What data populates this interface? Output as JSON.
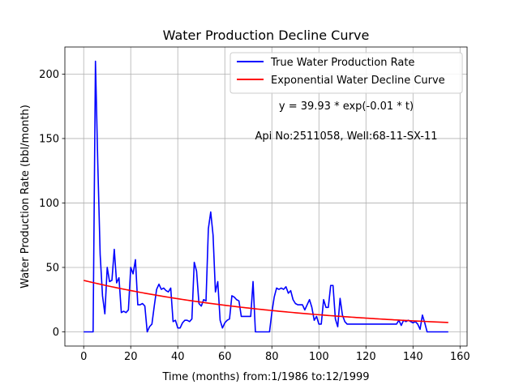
{
  "chart_data": {
    "type": "line",
    "title": "Water Production Decline Curve",
    "xlabel": "Time (months) from:1/1986 to:12/1999",
    "ylabel": "Water Production Rate (bbl/month)",
    "xlim": [
      -8,
      163
    ],
    "ylim": [
      -11,
      221
    ],
    "xticks": [
      0,
      20,
      40,
      60,
      80,
      100,
      120,
      140,
      160
    ],
    "yticks": [
      0,
      50,
      100,
      150,
      200
    ],
    "grid": true,
    "legend_position": "top-right",
    "annotations": [
      "y = 39.93 * exp(-0.01 * t)",
      "Api No:2511058, Well:68-11-SX-11"
    ],
    "series": [
      {
        "name": "True Water Production Rate",
        "color": "#0000ff",
        "points": [
          [
            0,
            0
          ],
          [
            1,
            0
          ],
          [
            2,
            0
          ],
          [
            3,
            0
          ],
          [
            4,
            0
          ],
          [
            5,
            210
          ],
          [
            6,
            130
          ],
          [
            7,
            60
          ],
          [
            8,
            28
          ],
          [
            9,
            14
          ],
          [
            10,
            50
          ],
          [
            11,
            39
          ],
          [
            12,
            40
          ],
          [
            13,
            64
          ],
          [
            14,
            38
          ],
          [
            15,
            42
          ],
          [
            16,
            15
          ],
          [
            17,
            16
          ],
          [
            18,
            15
          ],
          [
            19,
            17
          ],
          [
            20,
            50
          ],
          [
            21,
            45
          ],
          [
            22,
            56
          ],
          [
            23,
            21
          ],
          [
            24,
            21
          ],
          [
            25,
            22
          ],
          [
            26,
            20
          ],
          [
            27,
            0
          ],
          [
            28,
            4
          ],
          [
            29,
            6
          ],
          [
            30,
            20
          ],
          [
            31,
            33
          ],
          [
            32,
            37
          ],
          [
            33,
            33
          ],
          [
            34,
            34
          ],
          [
            35,
            32
          ],
          [
            36,
            31
          ],
          [
            37,
            34
          ],
          [
            38,
            8
          ],
          [
            39,
            9
          ],
          [
            40,
            3
          ],
          [
            41,
            3
          ],
          [
            42,
            7
          ],
          [
            43,
            9
          ],
          [
            44,
            9
          ],
          [
            45,
            8
          ],
          [
            46,
            10
          ],
          [
            47,
            54
          ],
          [
            48,
            47
          ],
          [
            49,
            22
          ],
          [
            50,
            20
          ],
          [
            51,
            25
          ],
          [
            52,
            24
          ],
          [
            53,
            80
          ],
          [
            54,
            93
          ],
          [
            55,
            75
          ],
          [
            56,
            31
          ],
          [
            57,
            39
          ],
          [
            58,
            9
          ],
          [
            59,
            3
          ],
          [
            60,
            7
          ],
          [
            61,
            9
          ],
          [
            62,
            10
          ],
          [
            63,
            28
          ],
          [
            64,
            27
          ],
          [
            65,
            25
          ],
          [
            66,
            24
          ],
          [
            67,
            12
          ],
          [
            68,
            12
          ],
          [
            69,
            12
          ],
          [
            70,
            12
          ],
          [
            71,
            12
          ],
          [
            72,
            39
          ],
          [
            73,
            0
          ],
          [
            74,
            0
          ],
          [
            75,
            0
          ],
          [
            76,
            0
          ],
          [
            77,
            0
          ],
          [
            78,
            0
          ],
          [
            79,
            0
          ],
          [
            80,
            15
          ],
          [
            81,
            27
          ],
          [
            82,
            34
          ],
          [
            83,
            33
          ],
          [
            84,
            34
          ],
          [
            85,
            33
          ],
          [
            86,
            35
          ],
          [
            87,
            30
          ],
          [
            88,
            32
          ],
          [
            89,
            25
          ],
          [
            90,
            22
          ],
          [
            91,
            21
          ],
          [
            92,
            21
          ],
          [
            93,
            21
          ],
          [
            94,
            17
          ],
          [
            95,
            21
          ],
          [
            96,
            25
          ],
          [
            97,
            19
          ],
          [
            98,
            9
          ],
          [
            99,
            12
          ],
          [
            100,
            6
          ],
          [
            101,
            6
          ],
          [
            102,
            25
          ],
          [
            103,
            19
          ],
          [
            104,
            19
          ],
          [
            105,
            36
          ],
          [
            106,
            36
          ],
          [
            107,
            10
          ],
          [
            108,
            4
          ],
          [
            109,
            26
          ],
          [
            110,
            13
          ],
          [
            111,
            8
          ],
          [
            112,
            6
          ],
          [
            113,
            6
          ],
          [
            114,
            6
          ],
          [
            115,
            6
          ],
          [
            116,
            6
          ],
          [
            117,
            6
          ],
          [
            118,
            6
          ],
          [
            119,
            6
          ],
          [
            120,
            6
          ],
          [
            121,
            6
          ],
          [
            122,
            6
          ],
          [
            123,
            6
          ],
          [
            124,
            6
          ],
          [
            125,
            6
          ],
          [
            126,
            6
          ],
          [
            127,
            6
          ],
          [
            128,
            6
          ],
          [
            129,
            6
          ],
          [
            130,
            6
          ],
          [
            131,
            6
          ],
          [
            132,
            6
          ],
          [
            133,
            6
          ],
          [
            134,
            9
          ],
          [
            135,
            5
          ],
          [
            136,
            9
          ],
          [
            137,
            8
          ],
          [
            138,
            9
          ],
          [
            139,
            8
          ],
          [
            140,
            7
          ],
          [
            141,
            8
          ],
          [
            142,
            6
          ],
          [
            143,
            2
          ],
          [
            144,
            13
          ],
          [
            145,
            7
          ],
          [
            146,
            0
          ],
          [
            147,
            0
          ],
          [
            148,
            0
          ],
          [
            149,
            0
          ],
          [
            150,
            0
          ],
          [
            151,
            0
          ],
          [
            152,
            0
          ],
          [
            153,
            0
          ],
          [
            154,
            0
          ],
          [
            155,
            0
          ]
        ]
      },
      {
        "name": "Exponential Water Decline Curve",
        "color": "#ff0000",
        "formula": {
          "a": 39.93,
          "k": 0.011,
          "t_start": 0,
          "t_end": 155
        }
      }
    ]
  }
}
